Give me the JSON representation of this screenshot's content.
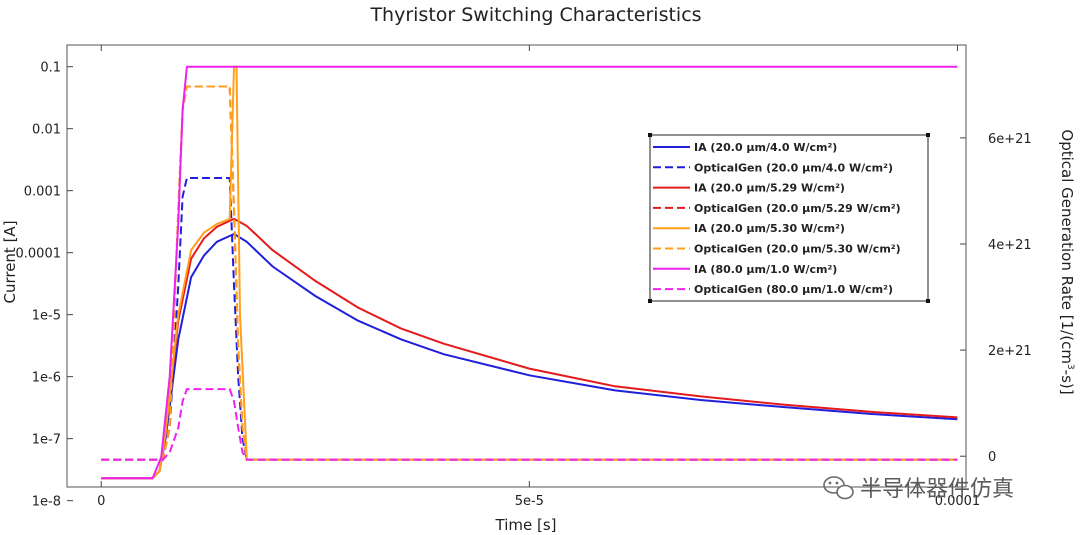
{
  "chart_data": {
    "type": "line",
    "title": "Thyristor Switching Characteristics",
    "xlabel": "Time [s]",
    "ylabel": "Current [A]",
    "y2label_html": "Optical Generation Rate [1/(cm<tspan dy='-6' font-size='9'>3</tspan><tspan dy='6'>-s)]</tspan>",
    "y2label": "Optical Generation Rate [1/(cm3-s)]",
    "xlim": [
      -4e-06,
      0.000101
    ],
    "ylim_log": [
      -7.78,
      -0.65
    ],
    "y2lim": [
      -5.8e+20,
      7.75e+21
    ],
    "x_ticks": [
      {
        "value": 0,
        "label": "0"
      },
      {
        "value": 5e-05,
        "label": "5e-5"
      },
      {
        "value": 0.0001,
        "label": "0.0001"
      }
    ],
    "y_ticks": [
      {
        "value": 0.1,
        "label": "0.1"
      },
      {
        "value": 0.01,
        "label": "0.01"
      },
      {
        "value": 0.001,
        "label": "0.001"
      },
      {
        "value": 0.0001,
        "label": "0.0001"
      },
      {
        "value": 1e-05,
        "label": "1e-5"
      },
      {
        "value": 1e-06,
        "label": "1e-6"
      },
      {
        "value": 1e-07,
        "label": "1e-7"
      },
      {
        "value": 1e-08,
        "label": "1e-8"
      }
    ],
    "y2_ticks": [
      {
        "value": 0,
        "label": "0"
      },
      {
        "value": 2e+21,
        "label": "2e+21"
      },
      {
        "value": 4e+21,
        "label": "4e+21"
      },
      {
        "value": 6e+21,
        "label": "6e+21"
      }
    ],
    "legend_position": "center-right",
    "series": [
      {
        "name": "IA",
        "label": "IA (20.0 µm/4.0 W/cm²)",
        "color": "#1f1fdc",
        "dash": "solid",
        "axis": "left",
        "x": [
          0,
          6e-06,
          6.8e-06,
          7.5e-06,
          9e-06,
          1.05e-05,
          1.2e-05,
          1.35e-05,
          1.55e-05,
          1.7e-05,
          2e-05,
          2.5e-05,
          3e-05,
          3.5e-05,
          4e-05,
          5e-05,
          6e-05,
          7e-05,
          8e-05,
          9e-05,
          0.0001
        ],
        "y": [
          2.3e-08,
          2.3e-08,
          3e-08,
          1e-07,
          4e-06,
          4e-05,
          9e-05,
          0.00015,
          0.0002,
          0.00015,
          6e-05,
          2e-05,
          8e-06,
          4e-06,
          2.3e-06,
          1.05e-06,
          6e-07,
          4.2e-07,
          3.2e-07,
          2.5e-07,
          2.05e-07
        ]
      },
      {
        "name": "OpticalGen",
        "label": "OpticalGen (20.0 µm/4.0 W/cm²)",
        "color": "#1f1fdc",
        "dash": "dashed",
        "axis": "left",
        "x": [
          0,
          7.2e-06,
          8e-06,
          9e-06,
          9.5e-06,
          1e-05,
          1.5e-05,
          1.55e-05,
          1.6e-05,
          1.65e-05,
          1.7e-05,
          0.0001
        ],
        "y": [
          4.6e-08,
          4.6e-08,
          1.5e-07,
          3e-05,
          0.0008,
          0.0016,
          0.0016,
          3e-05,
          1e-06,
          1e-07,
          4.6e-08,
          4.6e-08
        ]
      },
      {
        "name": "IA",
        "label": "IA (20.0 µm/5.29 W/cm²)",
        "color": "#e41a1c",
        "dash": "solid",
        "axis": "left",
        "x": [
          0,
          6e-06,
          6.8e-06,
          7.5e-06,
          9e-06,
          1.05e-05,
          1.2e-05,
          1.35e-05,
          1.55e-05,
          1.7e-05,
          2e-05,
          2.5e-05,
          3e-05,
          3.5e-05,
          4e-05,
          5e-05,
          6e-05,
          7e-05,
          8e-05,
          9e-05,
          0.0001
        ],
        "y": [
          2.3e-08,
          2.3e-08,
          3e-08,
          1.2e-07,
          8e-06,
          8e-05,
          0.00017,
          0.00026,
          0.00035,
          0.00027,
          0.00011,
          3.5e-05,
          1.3e-05,
          6e-06,
          3.4e-06,
          1.35e-06,
          7e-07,
          4.8e-07,
          3.5e-07,
          2.7e-07,
          2.2e-07
        ]
      },
      {
        "name": "OpticalGen",
        "label": "OpticalGen (20.0 µm/5.29 W/cm²)",
        "color": "#e41a1c",
        "dash": "dashed",
        "axis": "left",
        "x": [
          0,
          7.2e-06,
          8e-06,
          9e-06,
          9.5e-06,
          1e-05,
          1.5e-05,
          1.55e-05,
          1.6e-05,
          1.65e-05,
          1.7e-05,
          0.0001
        ],
        "y": [
          4.6e-08,
          4.6e-08,
          1.5e-07,
          0.0005,
          0.02,
          0.048,
          0.048,
          0.0005,
          3e-06,
          1.5e-07,
          4.6e-08,
          4.6e-08
        ]
      },
      {
        "name": "IA",
        "label": "IA (20.0 µm/5.30 W/cm²)",
        "color": "#ff9f1a",
        "dash": "solid",
        "axis": "left",
        "x": [
          0,
          6e-06,
          6.8e-06,
          7.5e-06,
          9e-06,
          1.05e-05,
          1.2e-05,
          1.35e-05,
          1.5e-05,
          1.55e-05,
          1.58e-05,
          1.62e-05,
          1.7e-05,
          0.0001
        ],
        "y": [
          2.3e-08,
          2.3e-08,
          3e-08,
          1.2e-07,
          1e-05,
          0.00011,
          0.00021,
          0.00029,
          0.00035,
          0.1,
          0.1,
          1e-05,
          4.6e-08,
          4.6e-08
        ]
      },
      {
        "name": "OpticalGen",
        "label": "OpticalGen (20.0 µm/5.30 W/cm²)",
        "color": "#ff9f1a",
        "dash": "dashed",
        "axis": "left",
        "x": [
          0,
          7.2e-06,
          8e-06,
          9e-06,
          9.5e-06,
          1e-05,
          1.5e-05,
          1.55e-05,
          1.6e-05,
          1.65e-05,
          1.7e-05,
          0.0001
        ],
        "y": [
          4.6e-08,
          4.6e-08,
          1.5e-07,
          0.0005,
          0.02,
          0.048,
          0.048,
          0.0005,
          3e-06,
          1.5e-07,
          4.6e-08,
          4.6e-08
        ]
      },
      {
        "name": "IA",
        "label": "IA (80.0 µm/1.0 W/cm²)",
        "color": "#ee22ee",
        "dash": "solid",
        "axis": "left",
        "x": [
          0,
          6e-06,
          7e-06,
          8e-06,
          9e-06,
          9.5e-06,
          1e-05,
          0.0001
        ],
        "y": [
          2.3e-08,
          2.3e-08,
          5e-08,
          1e-06,
          0.0003,
          0.02,
          0.1,
          0.1
        ]
      },
      {
        "name": "OpticalGen",
        "label": "OpticalGen (80.0 µm/1.0 W/cm²)",
        "color": "#ee22ee",
        "dash": "dashed",
        "axis": "left",
        "x": [
          0,
          7.2e-06,
          8e-06,
          9e-06,
          9.5e-06,
          1e-05,
          1.5e-05,
          1.55e-05,
          1.6e-05,
          1.65e-05,
          1.7e-05,
          0.0001
        ],
        "y": [
          4.6e-08,
          4.6e-08,
          6e-08,
          1.5e-07,
          4e-07,
          6.3e-07,
          6.3e-07,
          4e-07,
          1.5e-07,
          6e-08,
          4.6e-08,
          4.6e-08
        ]
      }
    ]
  },
  "watermark": {
    "text": "半导体器件仿真",
    "icon": "wechat-icon"
  }
}
